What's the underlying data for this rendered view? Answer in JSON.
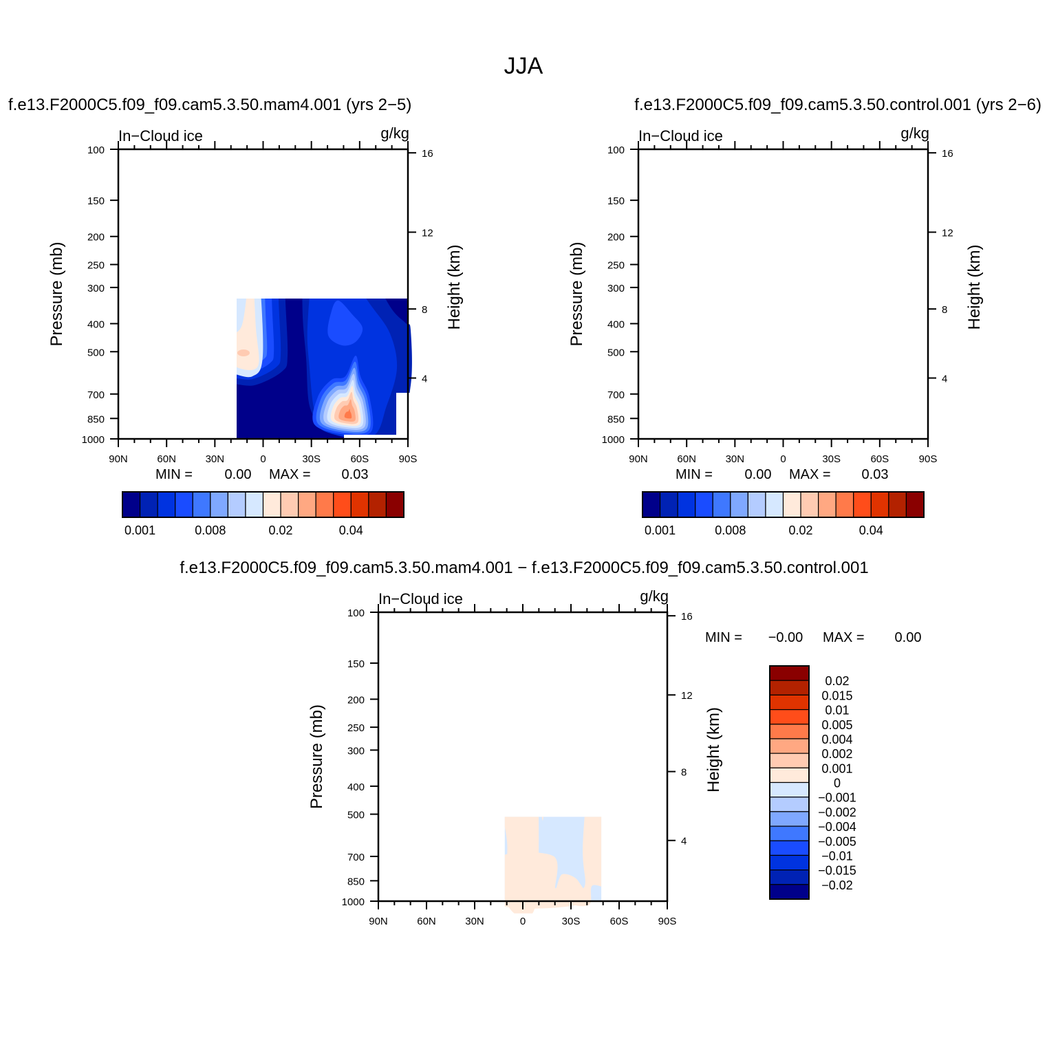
{
  "figure_title": "JJA",
  "chart_data": [
    {
      "type": "contour",
      "title": "f.e13.F2000C5.f09_f09.cam5.3.50.mam4.001 (yrs 2−5)",
      "left_label": "In−Cloud ice",
      "units": "g/kg",
      "ylabel": "Pressure (mb)",
      "y2label": "Height (km)",
      "x_tick_labels": [
        "90N",
        "60N",
        "30N",
        "0",
        "30S",
        "60S",
        "90S"
      ],
      "x_values": [
        90,
        60,
        30,
        0,
        -30,
        -60,
        -90
      ],
      "y_ticks": [
        100,
        150,
        200,
        250,
        300,
        400,
        500,
        700,
        850,
        1000
      ],
      "y_scale": "log",
      "ylim": [
        1000,
        100
      ],
      "y2_ticks": [
        4,
        8,
        12,
        16
      ],
      "min_label": "MIN =",
      "min": "0.00",
      "max_label": "MAX =",
      "max": "0.03",
      "colorbar": {
        "orientation": "horizontal",
        "labels": [
          "0.001",
          "0.008",
          "0.02",
          "0.04"
        ],
        "colors": [
          "#00008a",
          "#0022b4",
          "#0033e0",
          "#1a4cff",
          "#3f78ff",
          "#7fa8ff",
          "#b4ccff",
          "#d6e8ff",
          "#ffeadb",
          "#ffcbb2",
          "#ffa882",
          "#ff7a4a",
          "#ff4d1a",
          "#e03300",
          "#b32200",
          "#8a0000"
        ]
      }
    },
    {
      "type": "contour",
      "title": "f.e13.F2000C5.f09_f09.cam5.3.50.control.001 (yrs 2−6)",
      "left_label": "In−Cloud ice",
      "units": "g/kg",
      "ylabel": "Pressure (mb)",
      "y2label": "Height (km)",
      "x_tick_labels": [
        "90N",
        "60N",
        "30N",
        "0",
        "30S",
        "60S",
        "90S"
      ],
      "x_values": [
        90,
        60,
        30,
        0,
        -30,
        -60,
        -90
      ],
      "y_ticks": [
        100,
        150,
        200,
        250,
        300,
        400,
        500,
        700,
        850,
        1000
      ],
      "y_scale": "log",
      "ylim": [
        1000,
        100
      ],
      "y2_ticks": [
        4,
        8,
        12,
        16
      ],
      "min_label": "MIN =",
      "min": "0.00",
      "max_label": "MAX =",
      "max": "0.03",
      "colorbar": {
        "orientation": "horizontal",
        "labels": [
          "0.001",
          "0.008",
          "0.02",
          "0.04"
        ],
        "colors": [
          "#00008a",
          "#0022b4",
          "#0033e0",
          "#1a4cff",
          "#3f78ff",
          "#7fa8ff",
          "#b4ccff",
          "#d6e8ff",
          "#ffeadb",
          "#ffcbb2",
          "#ffa882",
          "#ff7a4a",
          "#ff4d1a",
          "#e03300",
          "#b32200",
          "#8a0000"
        ]
      }
    },
    {
      "type": "contour",
      "title": "f.e13.F2000C5.f09_f09.cam5.3.50.mam4.001 − f.e13.F2000C5.f09_f09.cam5.3.50.control.001",
      "left_label": "In−Cloud ice",
      "units": "g/kg",
      "ylabel": "Pressure (mb)",
      "y2label": "Height (km)",
      "x_tick_labels": [
        "90N",
        "60N",
        "30N",
        "0",
        "30S",
        "60S",
        "90S"
      ],
      "x_values": [
        90,
        60,
        30,
        0,
        -30,
        -60,
        -90
      ],
      "y_ticks": [
        100,
        150,
        200,
        250,
        300,
        400,
        500,
        700,
        850,
        1000
      ],
      "y_scale": "log",
      "ylim": [
        1000,
        100
      ],
      "y2_ticks": [
        4,
        8,
        12,
        16
      ],
      "min_label": "MIN =",
      "min": "−0.00",
      "max_label": "MAX =",
      "max": "0.00",
      "colorbar": {
        "orientation": "vertical",
        "labels": [
          "0.02",
          "0.015",
          "0.01",
          "0.005",
          "0.004",
          "0.002",
          "0.001",
          "0",
          "−0.001",
          "−0.002",
          "−0.004",
          "−0.005",
          "−0.01",
          "−0.015",
          "−0.02"
        ],
        "colors": [
          "#8a0000",
          "#b32200",
          "#e03300",
          "#ff4d1a",
          "#ff7a4a",
          "#ffa882",
          "#ffcbb2",
          "#ffeadb",
          "#d6e8ff",
          "#b4ccff",
          "#7fa8ff",
          "#3f78ff",
          "#1a4cff",
          "#0033e0",
          "#0022b4",
          "#00008a"
        ]
      }
    }
  ]
}
